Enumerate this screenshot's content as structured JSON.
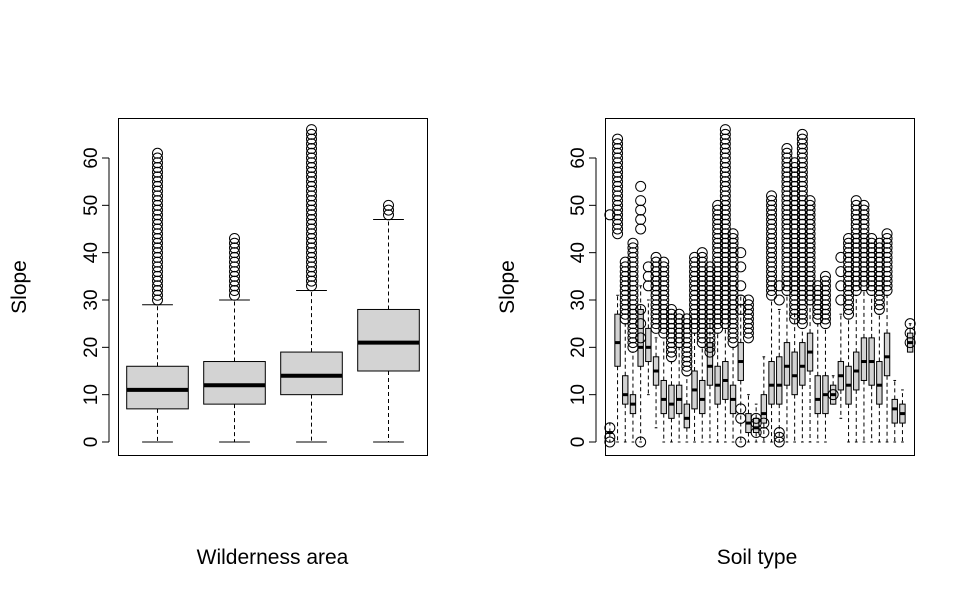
{
  "chart_data": [
    {
      "type": "boxplot",
      "title": "",
      "xlabel": "Wilderness area",
      "ylabel": "Slope",
      "ylim": [
        0,
        66
      ],
      "yticks": [
        0,
        10,
        20,
        30,
        40,
        50,
        60
      ],
      "box_color": "#d3d3d3",
      "boxes": [
        {
          "q1": 7,
          "median": 11,
          "q3": 16,
          "whisker_low": 0,
          "whisker_high": 29,
          "outlier_from": 30,
          "outlier_to": 61
        },
        {
          "q1": 8,
          "median": 12,
          "q3": 17,
          "whisker_low": 0,
          "whisker_high": 30,
          "outlier_from": 31,
          "outlier_to": 43
        },
        {
          "q1": 10,
          "median": 14,
          "q3": 19,
          "whisker_low": 0,
          "whisker_high": 32,
          "outlier_from": 33,
          "outlier_to": 66
        },
        {
          "q1": 15,
          "median": 21,
          "q3": 28,
          "whisker_low": 0,
          "whisker_high": 47,
          "outlier_from": 48,
          "outlier_to": 50
        }
      ]
    },
    {
      "type": "boxplot",
      "title": "",
      "xlabel": "Soil type",
      "ylabel": "Slope",
      "ylim": [
        0,
        66
      ],
      "yticks": [
        0,
        10,
        20,
        30,
        40,
        50,
        60
      ],
      "box_color": "#d3d3d3",
      "boxes": [
        {
          "q1": 2,
          "median": 2,
          "q3": 2,
          "whisker_low": 0,
          "whisker_high": 4,
          "outliers": [
            0,
            1,
            3,
            48
          ]
        },
        {
          "q1": 16,
          "median": 21,
          "q3": 27,
          "whisker_low": 0,
          "whisker_high": 31,
          "outlier_from": 44,
          "outlier_to": 64
        },
        {
          "q1": 8,
          "median": 10,
          "q3": 14,
          "whisker_low": 0,
          "whisker_high": 25,
          "outlier_from": 26,
          "outlier_to": 38
        },
        {
          "q1": 6,
          "median": 8,
          "q3": 10,
          "whisker_low": 0,
          "whisker_high": 19,
          "outlier_from": 20,
          "outlier_to": 42
        },
        {
          "q1": 16,
          "median": 20,
          "q3": 28,
          "whisker_low": 0,
          "whisker_high": 33,
          "outliers": [
            0,
            22,
            25,
            28,
            45,
            47,
            49,
            51,
            54
          ]
        },
        {
          "q1": 17,
          "median": 20,
          "q3": 24,
          "whisker_low": 10,
          "whisker_high": 30,
          "outliers": [
            33,
            35,
            37
          ]
        },
        {
          "q1": 12,
          "median": 15,
          "q3": 18,
          "whisker_low": 3,
          "whisker_high": 22,
          "outlier_from": 24,
          "outlier_to": 39
        },
        {
          "q1": 6,
          "median": 9,
          "q3": 13,
          "whisker_low": 0,
          "whisker_high": 22,
          "outlier_from": 23,
          "outlier_to": 38
        },
        {
          "q1": 5,
          "median": 8,
          "q3": 12,
          "whisker_low": 0,
          "whisker_high": 17,
          "outlier_from": 18,
          "outlier_to": 28
        },
        {
          "q1": 6,
          "median": 9,
          "q3": 12,
          "whisker_low": 0,
          "whisker_high": 20,
          "outlier_from": 21,
          "outlier_to": 27
        },
        {
          "q1": 3,
          "median": 5,
          "q3": 8,
          "whisker_low": 0,
          "whisker_high": 14,
          "outlier_from": 15,
          "outlier_to": 26
        },
        {
          "q1": 7,
          "median": 11,
          "q3": 15,
          "whisker_low": 0,
          "whisker_high": 23,
          "outlier_from": 24,
          "outlier_to": 39
        },
        {
          "q1": 6,
          "median": 9,
          "q3": 13,
          "whisker_low": 0,
          "whisker_high": 20,
          "outlier_from": 21,
          "outlier_to": 40
        },
        {
          "q1": 12,
          "median": 16,
          "q3": 21,
          "whisker_low": 0,
          "whisker_high": 26,
          "outlier_from": 19,
          "outlier_to": 37
        },
        {
          "q1": 8,
          "median": 12,
          "q3": 16,
          "whisker_low": 0,
          "whisker_high": 23,
          "outlier_from": 24,
          "outlier_to": 50
        },
        {
          "q1": 9,
          "median": 13,
          "q3": 17,
          "whisker_low": 0,
          "whisker_high": 24,
          "outlier_from": 25,
          "outlier_to": 66
        },
        {
          "q1": 6,
          "median": 9,
          "q3": 12,
          "whisker_low": 0,
          "whisker_high": 20,
          "outlier_from": 21,
          "outlier_to": 44
        },
        {
          "q1": 13,
          "median": 17,
          "q3": 21,
          "whisker_low": 0,
          "whisker_high": 31,
          "outliers": [
            0,
            5,
            7,
            28,
            30,
            33,
            37,
            40
          ]
        },
        {
          "q1": 2,
          "median": 4,
          "q3": 6,
          "whisker_low": 0,
          "whisker_high": 10,
          "outlier_from": 22,
          "outlier_to": 30
        },
        {
          "q1": 2,
          "median": 3,
          "q3": 5,
          "whisker_low": 0,
          "whisker_high": 8,
          "outliers": [
            2,
            4,
            5
          ]
        },
        {
          "q1": 4,
          "median": 6,
          "q3": 10,
          "whisker_low": 0,
          "whisker_high": 18,
          "outliers": [
            2,
            4
          ]
        },
        {
          "q1": 8,
          "median": 12,
          "q3": 17,
          "whisker_low": 0,
          "whisker_high": 30,
          "outlier_from": 31,
          "outlier_to": 52
        },
        {
          "q1": 8,
          "median": 12,
          "q3": 18,
          "whisker_low": 0,
          "whisker_high": 28,
          "outliers": [
            0,
            1,
            2,
            30,
            33
          ]
        },
        {
          "q1": 12,
          "median": 16,
          "q3": 21,
          "whisker_low": 0,
          "whisker_high": 31,
          "outlier_from": 32,
          "outlier_to": 62
        },
        {
          "q1": 10,
          "median": 14,
          "q3": 19,
          "whisker_low": 0,
          "whisker_high": 28,
          "outlier_from": 26,
          "outlier_to": 59
        },
        {
          "q1": 12,
          "median": 16,
          "q3": 21,
          "whisker_low": 0,
          "whisker_high": 24,
          "outlier_from": 25,
          "outlier_to": 65
        },
        {
          "q1": 15,
          "median": 19,
          "q3": 23,
          "whisker_low": 0,
          "whisker_high": 29,
          "outlier_from": 30,
          "outlier_to": 51
        },
        {
          "q1": 6,
          "median": 9,
          "q3": 14,
          "whisker_low": 0,
          "whisker_high": 25,
          "outlier_from": 26,
          "outlier_to": 33
        },
        {
          "q1": 6,
          "median": 10,
          "q3": 14,
          "whisker_low": 0,
          "whisker_high": 24,
          "outlier_from": 25,
          "outlier_to": 35
        },
        {
          "q1": 8,
          "median": 10,
          "q3": 12,
          "whisker_low": 8,
          "whisker_high": 14,
          "outliers": [
            10
          ]
        },
        {
          "q1": 11,
          "median": 14,
          "q3": 17,
          "whisker_low": 5,
          "whisker_high": 27,
          "outliers": [
            30,
            33,
            36,
            39
          ]
        },
        {
          "q1": 8,
          "median": 12,
          "q3": 16,
          "whisker_low": 0,
          "whisker_high": 26,
          "outlier_from": 27,
          "outlier_to": 43
        },
        {
          "q1": 11,
          "median": 15,
          "q3": 19,
          "whisker_low": 0,
          "whisker_high": 31,
          "outlier_from": 32,
          "outlier_to": 51
        },
        {
          "q1": 13,
          "median": 17,
          "q3": 22,
          "whisker_low": 0,
          "whisker_high": 32,
          "outlier_from": 33,
          "outlier_to": 50
        },
        {
          "q1": 12,
          "median": 17,
          "q3": 22,
          "whisker_low": 0,
          "whisker_high": 31,
          "outlier_from": 32,
          "outlier_to": 43
        },
        {
          "q1": 8,
          "median": 12,
          "q3": 17,
          "whisker_low": 0,
          "whisker_high": 27,
          "outlier_from": 28,
          "outlier_to": 42
        },
        {
          "q1": 14,
          "median": 18,
          "q3": 23,
          "whisker_low": 0,
          "whisker_high": 31,
          "outlier_from": 32,
          "outlier_to": 44
        },
        {
          "q1": 4,
          "median": 7,
          "q3": 9,
          "whisker_low": 0,
          "whisker_high": 13,
          "outliers": []
        },
        {
          "q1": 4,
          "median": 6,
          "q3": 8,
          "whisker_low": 0,
          "whisker_high": 11,
          "outliers": []
        },
        {
          "q1": 19,
          "median": 21,
          "q3": 23,
          "whisker_low": 19,
          "whisker_high": 25,
          "outliers": [
            21,
            23,
            25
          ]
        }
      ]
    }
  ]
}
